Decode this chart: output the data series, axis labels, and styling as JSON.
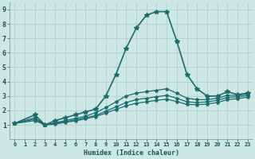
{
  "xlabel": "Humidex (Indice chaleur)",
  "ylabel": "",
  "xlim": [
    -0.5,
    23.5
  ],
  "ylim": [
    0,
    9.5
  ],
  "xticks": [
    0,
    1,
    2,
    3,
    4,
    5,
    6,
    7,
    8,
    9,
    10,
    11,
    12,
    13,
    14,
    15,
    16,
    17,
    18,
    19,
    20,
    21,
    22,
    23
  ],
  "yticks": [
    1,
    2,
    3,
    4,
    5,
    6,
    7,
    8,
    9
  ],
  "bg_color": "#cde8e4",
  "grid_color": "#a8ccca",
  "line_color": "#1e6b6b",
  "lines": [
    {
      "x": [
        0,
        2,
        3,
        4,
        5,
        6,
        7,
        8,
        9,
        10,
        11,
        12,
        13,
        14,
        15,
        16,
        17,
        18,
        19,
        20,
        21,
        22,
        23
      ],
      "y": [
        1.1,
        1.7,
        1.0,
        1.3,
        1.5,
        1.7,
        1.9,
        2.1,
        3.0,
        4.5,
        6.3,
        7.7,
        8.6,
        8.85,
        8.85,
        6.8,
        4.5,
        3.5,
        3.0,
        3.0,
        3.3,
        3.1,
        3.2
      ],
      "marker": "*",
      "markersize": 4.0,
      "linewidth": 1.2
    },
    {
      "x": [
        0,
        2,
        3,
        4,
        5,
        6,
        7,
        8,
        9,
        10,
        11,
        12,
        13,
        14,
        15,
        16,
        17,
        18,
        19,
        20,
        21,
        22,
        23
      ],
      "y": [
        1.1,
        1.5,
        1.0,
        1.15,
        1.3,
        1.45,
        1.6,
        1.85,
        2.2,
        2.6,
        3.0,
        3.2,
        3.3,
        3.4,
        3.5,
        3.2,
        2.85,
        2.75,
        2.75,
        2.85,
        3.05,
        3.05,
        3.15
      ],
      "marker": "*",
      "markersize": 3.0,
      "linewidth": 0.9
    },
    {
      "x": [
        0,
        2,
        3,
        4,
        5,
        6,
        7,
        8,
        9,
        10,
        11,
        12,
        13,
        14,
        15,
        16,
        17,
        18,
        19,
        20,
        21,
        22,
        23
      ],
      "y": [
        1.1,
        1.4,
        1.0,
        1.1,
        1.22,
        1.35,
        1.5,
        1.65,
        1.95,
        2.25,
        2.55,
        2.75,
        2.85,
        2.95,
        3.05,
        2.85,
        2.6,
        2.55,
        2.6,
        2.7,
        2.9,
        2.95,
        3.05
      ],
      "marker": "*",
      "markersize": 3.0,
      "linewidth": 0.9
    },
    {
      "x": [
        0,
        2,
        3,
        4,
        5,
        6,
        7,
        8,
        9,
        10,
        11,
        12,
        13,
        14,
        15,
        16,
        17,
        18,
        19,
        20,
        21,
        22,
        23
      ],
      "y": [
        1.1,
        1.3,
        1.0,
        1.05,
        1.18,
        1.28,
        1.42,
        1.58,
        1.82,
        2.08,
        2.32,
        2.5,
        2.6,
        2.7,
        2.78,
        2.62,
        2.42,
        2.4,
        2.45,
        2.55,
        2.75,
        2.82,
        2.92
      ],
      "marker": "*",
      "markersize": 3.0,
      "linewidth": 0.9
    }
  ]
}
